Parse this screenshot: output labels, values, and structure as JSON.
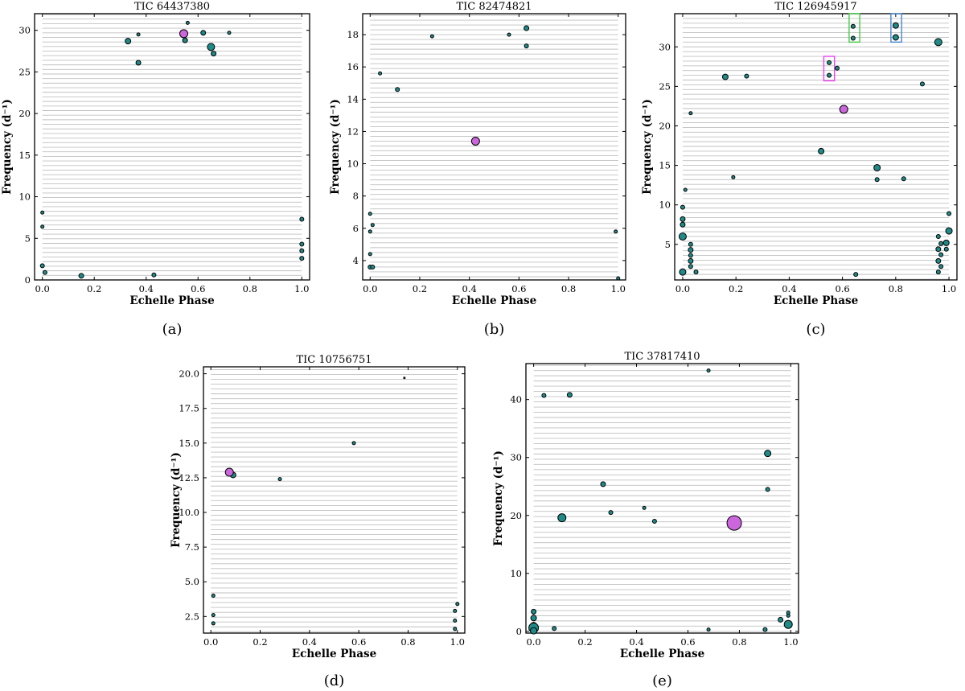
{
  "figure": {
    "colors": {
      "point": "#1f8a87",
      "highlight": "#cc66dd",
      "grid": "#c0c0c0",
      "box_green": "#44cc44",
      "box_blue": "#4488cc",
      "box_magenta": "#ee44ee"
    }
  },
  "chart_data": [
    {
      "type": "scatter",
      "title": "TIC 64437380",
      "xlabel": "Echelle Phase",
      "ylabel": "Frequency (d⁻¹)",
      "subcaption": "(a)",
      "xlim": [
        -0.03,
        1.03
      ],
      "ylim": [
        0,
        32
      ],
      "xticks": [
        "0.0",
        "0.2",
        "0.4",
        "0.6",
        "0.8",
        "1.0"
      ],
      "xtick_values": [
        0,
        0.2,
        0.4,
        0.6,
        0.8,
        1.0
      ],
      "yticks": [
        "0",
        "5",
        "10",
        "15",
        "20",
        "25",
        "30"
      ],
      "ytick_values": [
        0,
        5,
        10,
        15,
        20,
        25,
        30
      ],
      "grid_step": 0.55,
      "points": [
        {
          "x": 0.0,
          "y": 8.1,
          "s": 2
        },
        {
          "x": 0.0,
          "y": 6.4,
          "s": 2
        },
        {
          "x": 0.0,
          "y": 1.7,
          "s": 2.5
        },
        {
          "x": 0.01,
          "y": 0.9,
          "s": 2.5
        },
        {
          "x": 0.15,
          "y": 0.5,
          "s": 3
        },
        {
          "x": 0.33,
          "y": 28.7,
          "s": 3.5
        },
        {
          "x": 0.37,
          "y": 29.5,
          "s": 2
        },
        {
          "x": 0.37,
          "y": 26.1,
          "s": 3
        },
        {
          "x": 0.43,
          "y": 0.6,
          "s": 2.5
        },
        {
          "x": 0.55,
          "y": 28.8,
          "s": 3
        },
        {
          "x": 0.56,
          "y": 30.9,
          "s": 2
        },
        {
          "x": 0.62,
          "y": 29.7,
          "s": 3
        },
        {
          "x": 0.65,
          "y": 28.0,
          "s": 4.5
        },
        {
          "x": 0.66,
          "y": 27.2,
          "s": 3
        },
        {
          "x": 0.72,
          "y": 29.7,
          "s": 2
        },
        {
          "x": 1.0,
          "y": 7.3,
          "s": 2.5
        },
        {
          "x": 1.0,
          "y": 4.3,
          "s": 2.5
        },
        {
          "x": 1.0,
          "y": 3.5,
          "s": 2.5
        },
        {
          "x": 1.0,
          "y": 2.6,
          "s": 2.5
        }
      ],
      "highlight": [
        {
          "x": 0.545,
          "y": 29.6,
          "s": 5
        }
      ],
      "boxes": []
    },
    {
      "type": "scatter",
      "title": "TIC 82474821",
      "xlabel": "Echelle Phase",
      "ylabel": "Frequency (d⁻¹)",
      "subcaption": "(b)",
      "xlim": [
        -0.03,
        1.03
      ],
      "ylim": [
        2.8,
        19.3
      ],
      "xticks": [
        "0.0",
        "0.2",
        "0.4",
        "0.6",
        "0.8",
        "1.0"
      ],
      "xtick_values": [
        0,
        0.2,
        0.4,
        0.6,
        0.8,
        1.0
      ],
      "yticks": [
        "4",
        "6",
        "8",
        "10",
        "12",
        "14",
        "16",
        "18"
      ],
      "ytick_values": [
        4,
        6,
        8,
        10,
        12,
        14,
        16,
        18
      ],
      "grid_step": 0.3,
      "points": [
        {
          "x": 0.0,
          "y": 6.9,
          "s": 2
        },
        {
          "x": 0.01,
          "y": 6.2,
          "s": 2
        },
        {
          "x": 0.0,
          "y": 5.8,
          "s": 2
        },
        {
          "x": 0.0,
          "y": 4.4,
          "s": 2
        },
        {
          "x": 0.0,
          "y": 3.6,
          "s": 2.5
        },
        {
          "x": 0.01,
          "y": 3.6,
          "s": 2.5
        },
        {
          "x": 0.04,
          "y": 15.6,
          "s": 2
        },
        {
          "x": 0.11,
          "y": 14.6,
          "s": 2.5
        },
        {
          "x": 0.25,
          "y": 17.9,
          "s": 2
        },
        {
          "x": 0.56,
          "y": 18.0,
          "s": 2
        },
        {
          "x": 0.63,
          "y": 18.4,
          "s": 3
        },
        {
          "x": 0.63,
          "y": 17.3,
          "s": 2.5
        },
        {
          "x": 0.99,
          "y": 5.8,
          "s": 2
        },
        {
          "x": 1.0,
          "y": 2.9,
          "s": 2
        }
      ],
      "highlight": [
        {
          "x": 0.425,
          "y": 11.4,
          "s": 5
        }
      ],
      "boxes": []
    },
    {
      "type": "scatter",
      "title": "TIC 126945917",
      "xlabel": "Echelle Phase",
      "ylabel": "Frequency (d⁻¹)",
      "subcaption": "(c)",
      "xlim": [
        -0.03,
        1.03
      ],
      "ylim": [
        0.5,
        34.2
      ],
      "xticks": [
        "0.0",
        "0.2",
        "0.4",
        "0.6",
        "0.8",
        "1.0"
      ],
      "xtick_values": [
        0,
        0.2,
        0.4,
        0.6,
        0.8,
        1.0
      ],
      "yticks": [
        "5",
        "10",
        "15",
        "20",
        "25",
        "30"
      ],
      "ytick_values": [
        5,
        10,
        15,
        20,
        25,
        30
      ],
      "grid_step": 0.6,
      "points": [
        {
          "x": 0.0,
          "y": 1.5,
          "s": 4
        },
        {
          "x": 0.0,
          "y": 6.0,
          "s": 4.5
        },
        {
          "x": 0.0,
          "y": 7.5,
          "s": 3
        },
        {
          "x": 0.0,
          "y": 8.2,
          "s": 3
        },
        {
          "x": 0.0,
          "y": 9.7,
          "s": 2.5
        },
        {
          "x": 0.01,
          "y": 11.9,
          "s": 2
        },
        {
          "x": 0.03,
          "y": 5.0,
          "s": 2.5
        },
        {
          "x": 0.03,
          "y": 4.3,
          "s": 3
        },
        {
          "x": 0.03,
          "y": 3.6,
          "s": 2.5
        },
        {
          "x": 0.03,
          "y": 2.9,
          "s": 3
        },
        {
          "x": 0.03,
          "y": 2.2,
          "s": 2.5
        },
        {
          "x": 0.05,
          "y": 1.5,
          "s": 2.5
        },
        {
          "x": 0.03,
          "y": 21.6,
          "s": 2
        },
        {
          "x": 0.16,
          "y": 26.2,
          "s": 3.5
        },
        {
          "x": 0.19,
          "y": 13.5,
          "s": 2
        },
        {
          "x": 0.24,
          "y": 26.3,
          "s": 2.5
        },
        {
          "x": 0.52,
          "y": 16.8,
          "s": 3.5
        },
        {
          "x": 0.55,
          "y": 28.0,
          "s": 2.5
        },
        {
          "x": 0.55,
          "y": 26.4,
          "s": 2.5
        },
        {
          "x": 0.58,
          "y": 27.3,
          "s": 2.5
        },
        {
          "x": 0.64,
          "y": 32.6,
          "s": 2.5
        },
        {
          "x": 0.64,
          "y": 31.1,
          "s": 2.5
        },
        {
          "x": 0.65,
          "y": 1.2,
          "s": 2.5
        },
        {
          "x": 0.73,
          "y": 14.7,
          "s": 4
        },
        {
          "x": 0.73,
          "y": 13.2,
          "s": 2.5
        },
        {
          "x": 0.8,
          "y": 32.7,
          "s": 3.5
        },
        {
          "x": 0.8,
          "y": 31.2,
          "s": 3.5
        },
        {
          "x": 0.83,
          "y": 13.3,
          "s": 2.5
        },
        {
          "x": 0.9,
          "y": 25.3,
          "s": 2.5
        },
        {
          "x": 0.96,
          "y": 30.6,
          "s": 4.5
        },
        {
          "x": 0.96,
          "y": 6.0,
          "s": 2.5
        },
        {
          "x": 0.97,
          "y": 5.1,
          "s": 2.5
        },
        {
          "x": 0.96,
          "y": 4.4,
          "s": 3
        },
        {
          "x": 0.97,
          "y": 3.7,
          "s": 2.5
        },
        {
          "x": 0.96,
          "y": 2.9,
          "s": 3
        },
        {
          "x": 0.97,
          "y": 2.2,
          "s": 2.5
        },
        {
          "x": 0.96,
          "y": 1.5,
          "s": 2.5
        },
        {
          "x": 0.99,
          "y": 5.2,
          "s": 3.5
        },
        {
          "x": 0.99,
          "y": 4.4,
          "s": 2.5
        },
        {
          "x": 1.0,
          "y": 6.7,
          "s": 4
        },
        {
          "x": 1.0,
          "y": 8.9,
          "s": 2.5
        }
      ],
      "highlight": [
        {
          "x": 0.605,
          "y": 22.1,
          "s": 5
        }
      ],
      "boxes": [
        {
          "x0": 0.53,
          "x1": 0.57,
          "y0": 25.7,
          "y1": 28.8,
          "color": "box_magenta"
        },
        {
          "x0": 0.625,
          "x1": 0.665,
          "y0": 30.6,
          "y1": 34.2,
          "color": "box_green"
        },
        {
          "x0": 0.782,
          "x1": 0.822,
          "y0": 30.6,
          "y1": 34.2,
          "color": "box_blue"
        }
      ]
    },
    {
      "type": "scatter",
      "title": "TIC 10756751",
      "xlabel": "Echelle Phase",
      "ylabel": "Frequency (d⁻¹)",
      "subcaption": "(d)",
      "xlim": [
        -0.03,
        1.03
      ],
      "ylim": [
        1.3,
        20.5
      ],
      "xticks": [
        "0.0",
        "0.2",
        "0.4",
        "0.6",
        "0.8",
        "1.0"
      ],
      "xtick_values": [
        0,
        0.2,
        0.4,
        0.6,
        0.8,
        1.0
      ],
      "yticks": [
        "2.5",
        "5.0",
        "7.5",
        "10.0",
        "12.5",
        "15.0",
        "17.5",
        "20.0"
      ],
      "ytick_values": [
        2.5,
        5.0,
        7.5,
        10.0,
        12.5,
        15.0,
        17.5,
        20.0
      ],
      "grid_step": 0.35,
      "points": [
        {
          "x": 0.01,
          "y": 4.0,
          "s": 2
        },
        {
          "x": 0.01,
          "y": 2.6,
          "s": 2
        },
        {
          "x": 0.01,
          "y": 2.0,
          "s": 2
        },
        {
          "x": 0.09,
          "y": 12.7,
          "s": 3.5
        },
        {
          "x": 0.28,
          "y": 12.4,
          "s": 2
        },
        {
          "x": 0.58,
          "y": 15.0,
          "s": 2
        },
        {
          "x": 0.785,
          "y": 19.7,
          "s": 1
        },
        {
          "x": 1.0,
          "y": 3.4,
          "s": 2
        },
        {
          "x": 0.99,
          "y": 2.9,
          "s": 2
        },
        {
          "x": 0.99,
          "y": 2.2,
          "s": 2
        },
        {
          "x": 0.99,
          "y": 1.6,
          "s": 2
        }
      ],
      "highlight": [
        {
          "x": 0.075,
          "y": 12.9,
          "s": 5
        }
      ],
      "boxes": []
    },
    {
      "type": "scatter",
      "title": "TIC 37817410",
      "xlabel": "Echelle Phase",
      "ylabel": "Frequency (d⁻¹)",
      "subcaption": "(e)",
      "xlim": [
        -0.03,
        1.03
      ],
      "ylim": [
        -0.3,
        46.2
      ],
      "xticks": [
        "0.0",
        "0.2",
        "0.4",
        "0.6",
        "0.8",
        "1.0"
      ],
      "xtick_values": [
        0,
        0.2,
        0.4,
        0.6,
        0.8,
        1.0
      ],
      "yticks": [
        "0",
        "10",
        "20",
        "30",
        "40"
      ],
      "ytick_values": [
        0,
        10,
        20,
        30,
        40
      ],
      "grid_step": 0.9,
      "points": [
        {
          "x": 0.0,
          "y": 3.4,
          "s": 3
        },
        {
          "x": 0.0,
          "y": 2.3,
          "s": 3.5
        },
        {
          "x": 0.0,
          "y": 1.0,
          "s": 4
        },
        {
          "x": 0.0,
          "y": 0.6,
          "s": 6
        },
        {
          "x": 0.0,
          "y": 0.1,
          "s": 4
        },
        {
          "x": 0.04,
          "y": 40.7,
          "s": 2.5
        },
        {
          "x": 0.08,
          "y": 0.5,
          "s": 2.5
        },
        {
          "x": 0.11,
          "y": 19.6,
          "s": 5
        },
        {
          "x": 0.14,
          "y": 40.8,
          "s": 3
        },
        {
          "x": 0.27,
          "y": 25.4,
          "s": 3
        },
        {
          "x": 0.3,
          "y": 20.5,
          "s": 2.5
        },
        {
          "x": 0.43,
          "y": 21.3,
          "s": 2
        },
        {
          "x": 0.47,
          "y": 19.0,
          "s": 2.5
        },
        {
          "x": 0.68,
          "y": 45.0,
          "s": 2
        },
        {
          "x": 0.68,
          "y": 0.3,
          "s": 2
        },
        {
          "x": 0.9,
          "y": 0.3,
          "s": 2.5
        },
        {
          "x": 0.91,
          "y": 30.7,
          "s": 4
        },
        {
          "x": 0.91,
          "y": 24.5,
          "s": 2.5
        },
        {
          "x": 0.96,
          "y": 2.0,
          "s": 3
        },
        {
          "x": 0.99,
          "y": 3.2,
          "s": 2
        },
        {
          "x": 0.99,
          "y": 2.7,
          "s": 2
        },
        {
          "x": 0.99,
          "y": 1.2,
          "s": 5
        }
      ],
      "highlight": [
        {
          "x": 0.78,
          "y": 18.7,
          "s": 9
        }
      ],
      "boxes": []
    }
  ]
}
